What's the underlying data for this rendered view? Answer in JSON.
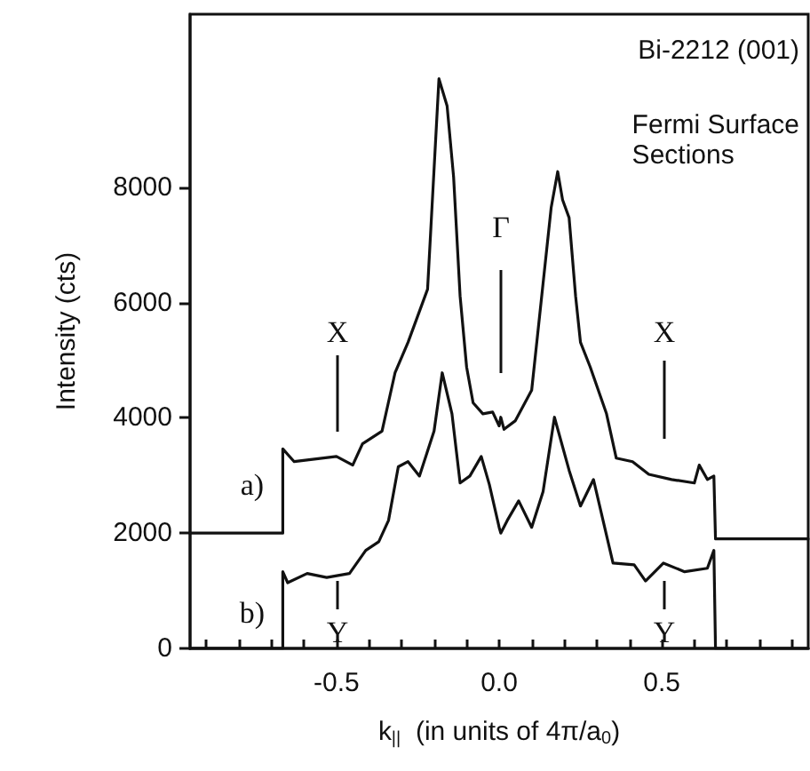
{
  "chart_data": {
    "type": "line",
    "xlabel": "k$_{||}$  (in units of 4π/a$_{0}$)",
    "ylabel": "Intensity (cts)",
    "xlim": [
      -0.95,
      0.95
    ],
    "xticks": [
      {
        "value": -0.9,
        "label": null
      },
      {
        "value": -0.8,
        "label": null
      },
      {
        "value": -0.7,
        "label": null
      },
      {
        "value": -0.6,
        "label": null
      },
      "-0.5",
      {
        "value": -0.4,
        "label": null
      },
      {
        "value": -0.3,
        "label": null
      },
      {
        "value": -0.2,
        "label": null
      },
      {
        "value": -0.1,
        "label": null
      },
      {
        "value": 0,
        "label": "0.0"
      },
      {
        "value": 0.1,
        "label": null
      },
      {
        "value": 0.2,
        "label": null
      },
      {
        "value": 0.3,
        "label": null
      },
      {
        "value": 0.4,
        "label": null
      },
      0.5,
      {
        "value": 0.6,
        "label": null
      },
      {
        "value": 0.7,
        "label": null
      },
      {
        "value": 0.8,
        "label": null
      },
      {
        "value": 0.9,
        "label": null
      }
    ],
    "ylim": [
      0,
      11000
    ],
    "yticks": [
      0,
      2000,
      4000,
      6000,
      8000
    ],
    "marker": "none",
    "line_style": "solid",
    "series": [
      {
        "color": "#111111",
        "x": [
          -0.95,
          -0.665,
          -0.665,
          -0.63,
          -0.5,
          -0.45,
          -0.42,
          -0.36,
          -0.32,
          -0.28,
          -0.22,
          -0.185,
          -0.16,
          -0.14,
          -0.12,
          -0.1,
          -0.08,
          -0.05,
          -0.02,
          0,
          0.005,
          0.015,
          0.05,
          0.1,
          0.135,
          0.16,
          0.18,
          0.195,
          0.215,
          0.235,
          0.25,
          0.28,
          0.33,
          0.36,
          0.41,
          0.46,
          0.53,
          0.6,
          0.615,
          0.64,
          0.66,
          0.665,
          0.95
        ],
        "values": [
          2000,
          2000,
          3460,
          3240,
          3330,
          3180,
          3550,
          3770,
          4780,
          5310,
          6230,
          9880,
          9410,
          8180,
          6110,
          4880,
          4260,
          4070,
          4100,
          3860,
          4010,
          3800,
          3950,
          4480,
          6330,
          7650,
          8270,
          7780,
          7470,
          6110,
          5310,
          4880,
          4070,
          3300,
          3240,
          3020,
          2930,
          2870,
          3180,
          2930,
          2990,
          1900,
          1900
        ]
      },
      {
        "color": "#111111",
        "x": [
          -0.95,
          -0.665,
          -0.665,
          -0.65,
          -0.59,
          -0.53,
          -0.46,
          -0.41,
          -0.37,
          -0.34,
          -0.31,
          -0.28,
          -0.245,
          -0.2,
          -0.175,
          -0.145,
          -0.12,
          -0.09,
          -0.055,
          -0.03,
          0,
          0.005,
          0.025,
          0.06,
          0.1,
          0.135,
          0.17,
          0.215,
          0.25,
          0.29,
          0.35,
          0.415,
          0.45,
          0.505,
          0.57,
          0.64,
          0.66,
          0.665,
          0.95
        ],
        "values": [
          0,
          0,
          1330,
          1140,
          1300,
          1230,
          1300,
          1700,
          1850,
          2220,
          3150,
          3240,
          2990,
          3770,
          4780,
          4070,
          2870,
          2990,
          3330,
          2840,
          2100,
          2000,
          2220,
          2560,
          2100,
          2720,
          4010,
          3090,
          2470,
          2930,
          1480,
          1450,
          1170,
          1480,
          1330,
          1390,
          1700,
          0,
          0
        ]
      }
    ],
    "annotations": [
      "Bi-2212 (001)",
      "Fermi Surface\nSections",
      "a)",
      "b)",
      "X",
      "Γ",
      "X",
      "Y",
      "Y"
    ]
  }
}
